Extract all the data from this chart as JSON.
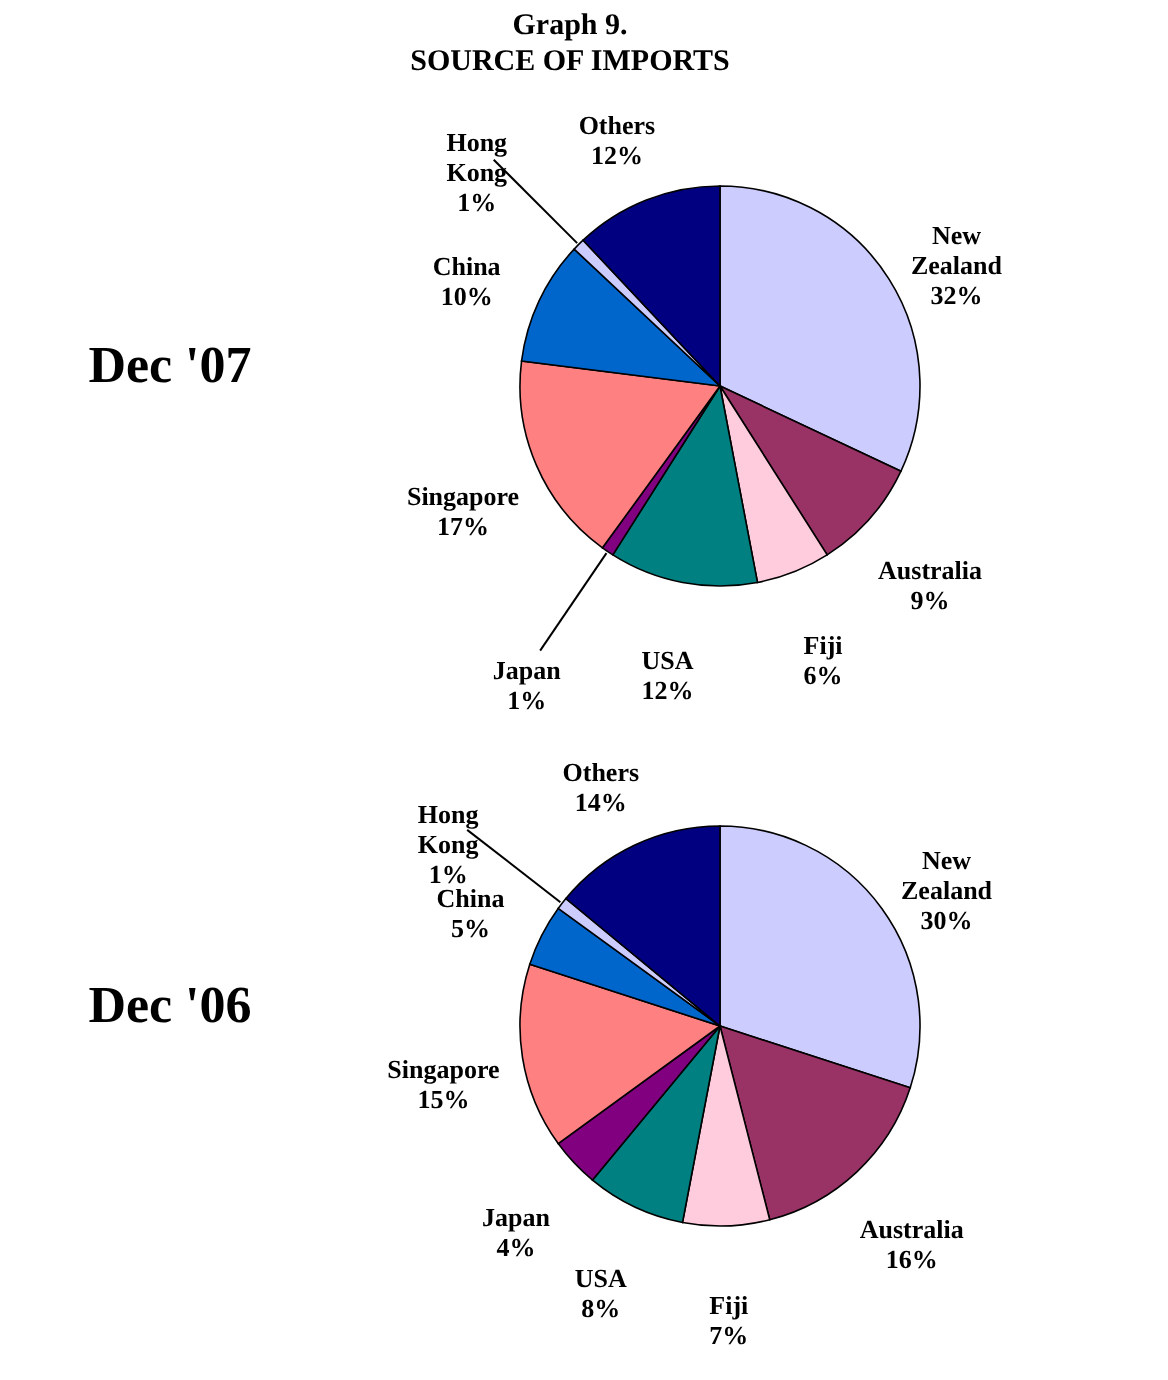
{
  "chart_data": [
    {
      "type": "pie",
      "title": "Graph 9.",
      "subtitle": "SOURCE OF IMPORTS",
      "ylabel": "Dec '07",
      "categories": [
        "New Zealand",
        "Australia",
        "Fiji",
        "USA",
        "Japan",
        "Singapore",
        "China",
        "Hong Kong",
        "Others"
      ],
      "values": [
        32,
        9,
        6,
        12,
        1,
        17,
        10,
        1,
        12
      ],
      "value_labels": [
        "32%",
        "9%",
        "6%",
        "12%",
        "1%",
        "17%",
        "10%",
        "1%",
        "12%"
      ],
      "colors": [
        "#ccccff",
        "#993366",
        "#ffccdd",
        "#008080",
        "#800080",
        "#ff8080",
        "#0066cc",
        "#ccccff",
        "#000080"
      ],
      "legend": false
    },
    {
      "type": "pie",
      "ylabel": "Dec '06",
      "categories": [
        "New Zealand",
        "Australia",
        "Fiji",
        "USA",
        "Japan",
        "Singapore",
        "China",
        "Hong Kong",
        "Others"
      ],
      "values": [
        30,
        16,
        7,
        8,
        4,
        15,
        5,
        1,
        14
      ],
      "value_labels": [
        "30%",
        "16%",
        "7%",
        "8%",
        "4%",
        "15%",
        "5%",
        "1%",
        "14%"
      ],
      "colors": [
        "#ccccff",
        "#993366",
        "#ffccdd",
        "#008080",
        "#800080",
        "#ff8080",
        "#0066cc",
        "#ccccff",
        "#000080"
      ],
      "legend": false
    }
  ]
}
